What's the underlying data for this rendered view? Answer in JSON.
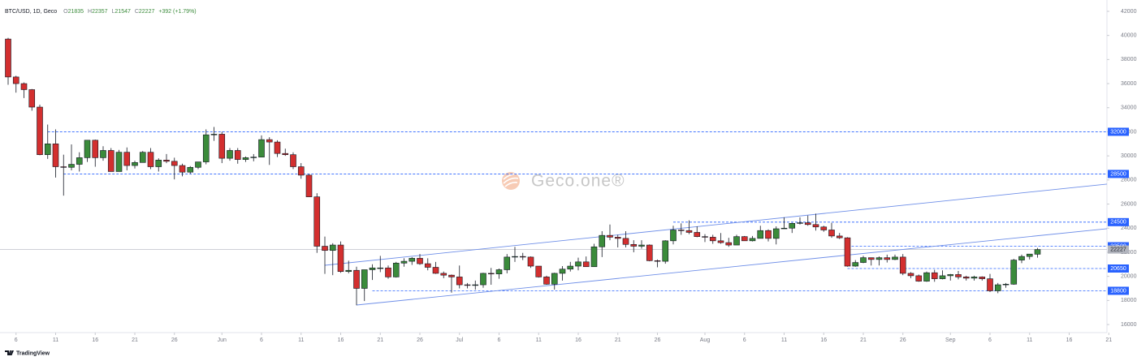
{
  "chart_data": {
    "type": "candlestick",
    "header": {
      "symbol": "BTC/USD, 1D, Geco",
      "labels": [
        "O",
        "H",
        "L",
        "C"
      ],
      "change": "+392 (+1.79%)"
    },
    "watermark": "Geco.one®",
    "brand": "TradingView",
    "categories": [
      "May 5",
      "May 6",
      "May 7",
      "May 8",
      "May 9",
      "May 10",
      "May 11",
      "May 12",
      "May 13",
      "May 14",
      "May 15",
      "May 16",
      "May 17",
      "May 18",
      "May 19",
      "May 20",
      "May 21",
      "May 22",
      "May 23",
      "May 24",
      "May 25",
      "May 26",
      "May 27",
      "May 28",
      "May 29",
      "May 30",
      "May 31",
      "Jun 1",
      "Jun 2",
      "Jun 3",
      "Jun 4",
      "Jun 5",
      "Jun 6",
      "Jun 7",
      "Jun 8",
      "Jun 9",
      "Jun 10",
      "Jun 11",
      "Jun 12",
      "Jun 13",
      "Jun 14",
      "Jun 15",
      "Jun 16",
      "Jun 17",
      "Jun 18",
      "Jun 19",
      "Jun 20",
      "Jun 21",
      "Jun 22",
      "Jun 23",
      "Jun 24",
      "Jun 25",
      "Jun 26",
      "Jun 27",
      "Jun 28",
      "Jun 29",
      "Jun 30",
      "Jul 1",
      "Jul 2",
      "Jul 3",
      "Jul 4",
      "Jul 5",
      "Jul 6",
      "Jul 7",
      "Jul 8",
      "Jul 9",
      "Jul 10",
      "Jul 11",
      "Jul 12",
      "Jul 13",
      "Jul 14",
      "Jul 15",
      "Jul 16",
      "Jul 17",
      "Jul 18",
      "Jul 19",
      "Jul 20",
      "Jul 21",
      "Jul 22",
      "Jul 23",
      "Jul 24",
      "Jul 25",
      "Jul 26",
      "Jul 27",
      "Jul 28",
      "Jul 29",
      "Jul 30",
      "Jul 31",
      "Aug 1",
      "Aug 2",
      "Aug 3",
      "Aug 4",
      "Aug 5",
      "Aug 6",
      "Aug 7",
      "Aug 8",
      "Aug 9",
      "Aug 10",
      "Aug 11",
      "Aug 12",
      "Aug 13",
      "Aug 14",
      "Aug 15",
      "Aug 16",
      "Aug 17",
      "Aug 18",
      "Aug 19",
      "Aug 20",
      "Aug 21",
      "Aug 22",
      "Aug 23",
      "Aug 24",
      "Aug 25",
      "Aug 26",
      "Aug 27",
      "Aug 28",
      "Aug 29",
      "Aug 30",
      "Aug 31",
      "Sep 1",
      "Sep 2",
      "Sep 3",
      "Sep 4",
      "Sep 5",
      "Sep 6",
      "Sep 7",
      "Sep 8",
      "Sep 9",
      "Sep 10",
      "Sep 11",
      "Sep 12",
      "Sep 13",
      "Sep 14",
      "Sep 15",
      "Sep 16",
      "Sep 17",
      "Sep 18",
      "Sep 19",
      "Sep 20",
      "Sep 21"
    ],
    "open": [
      39700,
      36550,
      36000,
      35500,
      34050,
      30100,
      31000,
      29100,
      29050,
      29300,
      29850,
      31300,
      29850,
      30450,
      28700,
      30300,
      29200,
      29450,
      30300,
      29100,
      29650,
      29550,
      29200,
      28650,
      29050,
      29500,
      31750,
      31800,
      29800,
      30450,
      29700,
      29850,
      29900,
      31350,
      31150,
      30200,
      30100,
      29100,
      28400,
      26600,
      22500,
      22150,
      22600,
      20400,
      20500,
      19000,
      20550,
      20700,
      20700,
      19950,
      21100,
      21250,
      21500,
      21050,
      20750,
      20250,
      20100,
      19950,
      19300,
      19250,
      19300,
      20250,
      20200,
      20550,
      21600,
      21650,
      21600,
      20850,
      19950,
      19350,
      20250,
      20600,
      20850,
      21200,
      20800,
      22450,
      23400,
      23250,
      23150,
      22650,
      22500,
      22600,
      21300,
      21250,
      22950,
      23850,
      23800,
      23650,
      23300,
      23250,
      22950,
      22800,
      22600,
      23300,
      22950,
      23150,
      23800,
      23150,
      23950,
      24000,
      24400,
      24450,
      24300,
      24100,
      23850,
      23350,
      23200,
      20850,
      21150,
      21550,
      21400,
      21550,
      21400,
      21600,
      20250,
      20050,
      19600,
      20300,
      19800,
      20050,
      20150,
      19950,
      19850,
      19950,
      19800,
      18800,
      19300,
      19350,
      21350,
      21650,
      21835,
      null,
      null,
      null,
      null,
      null,
      null,
      null,
      null,
      null
    ],
    "high": [
      39800,
      36650,
      36100,
      35550,
      34250,
      32600,
      32200,
      30100,
      30950,
      30300,
      31300,
      31350,
      30800,
      30650,
      30500,
      30700,
      29600,
      30400,
      30650,
      29800,
      30150,
      29850,
      29350,
      29150,
      29500,
      32200,
      32400,
      32000,
      30650,
      30650,
      29950,
      30150,
      31700,
      31550,
      31300,
      30600,
      30300,
      29400,
      28500,
      26900,
      23300,
      22750,
      22900,
      21300,
      20800,
      20550,
      21000,
      21700,
      20900,
      21200,
      21500,
      21600,
      21850,
      21500,
      21200,
      20400,
      20150,
      20900,
      19450,
      19650,
      20300,
      20700,
      20650,
      21850,
      22450,
      21950,
      21650,
      20850,
      20050,
      20300,
      20850,
      21200,
      21550,
      21650,
      22700,
      23750,
      24300,
      23450,
      23750,
      23000,
      23000,
      22650,
      21400,
      23000,
      24200,
      24400,
      24650,
      24150,
      23500,
      23450,
      23600,
      23200,
      23450,
      23350,
      23350,
      24200,
      23900,
      24150,
      24900,
      24450,
      24900,
      25050,
      25200,
      24200,
      24450,
      23600,
      23250,
      21350,
      21700,
      21550,
      21650,
      21800,
      21800,
      21850,
      20350,
      20150,
      20400,
      20550,
      20500,
      20200,
      20450,
      20050,
      20050,
      20000,
      20200,
      19450,
      19450,
      21450,
      21800,
      21850,
      22357,
      null,
      null,
      null,
      null,
      null,
      null,
      null,
      null,
      null
    ],
    "low": [
      35900,
      35250,
      34800,
      33750,
      30050,
      29750,
      28200,
      26700,
      28800,
      28700,
      29500,
      29100,
      29600,
      28700,
      28700,
      28800,
      28950,
      29450,
      28900,
      28700,
      29400,
      28050,
      28300,
      28500,
      28900,
      29300,
      31250,
      29400,
      29600,
      29350,
      29500,
      29550,
      29900,
      29250,
      29900,
      30000,
      28900,
      28100,
      26600,
      21950,
      20200,
      20100,
      20300,
      20250,
      17600,
      17950,
      19700,
      20350,
      19800,
      19900,
      20800,
      20950,
      20950,
      20500,
      20200,
      19850,
      18650,
      19000,
      19000,
      18900,
      19050,
      19300,
      19800,
      20250,
      21200,
      21350,
      20700,
      19900,
      19300,
      18900,
      19650,
      20400,
      20500,
      20800,
      20800,
      21600,
      23000,
      22400,
      22400,
      22000,
      22300,
      21250,
      20750,
      21050,
      22650,
      23450,
      23500,
      23250,
      22850,
      22700,
      22700,
      22450,
      22600,
      22950,
      22900,
      23150,
      22900,
      22650,
      23950,
      23600,
      24300,
      24200,
      23800,
      23700,
      23200,
      23100,
      20800,
      20800,
      21100,
      20900,
      20900,
      21150,
      21350,
      20100,
      19850,
      19550,
      19550,
      19550,
      19750,
      19650,
      19750,
      19650,
      19650,
      19650,
      18700,
      18600,
      19050,
      19300,
      21100,
      21400,
      21547,
      null,
      null,
      null,
      null,
      null,
      null,
      null,
      null,
      null
    ],
    "close": [
      36550,
      36000,
      35500,
      34050,
      30100,
      31000,
      29100,
      29050,
      29300,
      29850,
      31300,
      29850,
      30450,
      28700,
      30300,
      29200,
      29450,
      30300,
      29100,
      29650,
      29550,
      29200,
      28650,
      29050,
      29500,
      31750,
      31800,
      29800,
      30450,
      29700,
      29850,
      29900,
      31350,
      31150,
      30200,
      30100,
      29100,
      28400,
      26600,
      22500,
      22150,
      22600,
      20400,
      20500,
      19000,
      20550,
      20700,
      20700,
      19950,
      21100,
      21250,
      21500,
      21050,
      20750,
      20250,
      20100,
      19950,
      19300,
      19250,
      19300,
      20250,
      20200,
      20550,
      21600,
      21650,
      21600,
      20850,
      19950,
      19350,
      20250,
      20600,
      20850,
      21200,
      20800,
      22450,
      23400,
      23250,
      23150,
      22650,
      22500,
      22600,
      21300,
      21250,
      22950,
      23850,
      23800,
      23650,
      23300,
      23250,
      22950,
      22800,
      22600,
      23300,
      22950,
      23150,
      23800,
      23150,
      23950,
      24000,
      24400,
      24450,
      24300,
      24100,
      23850,
      23350,
      23200,
      20850,
      21150,
      21550,
      21400,
      21550,
      21400,
      21600,
      20250,
      20050,
      19600,
      20300,
      19800,
      20050,
      20150,
      19950,
      19850,
      19950,
      19800,
      18800,
      19300,
      19350,
      21350,
      21650,
      21850,
      22227,
      null,
      null,
      null,
      null,
      null,
      null,
      null,
      null,
      null
    ],
    "up_color": "#3b8b3b",
    "down_color": "#d32f2f",
    "ylim": [
      15330,
      42940
    ],
    "yticks": [
      16000,
      18000,
      20000,
      22000,
      24000,
      26000,
      28000,
      30000,
      32000,
      34000,
      36000,
      38000,
      40000,
      42000
    ],
    "xticks": [
      {
        "value": "May 6",
        "label": "6"
      },
      {
        "value": "May 11",
        "label": "11"
      },
      {
        "value": "May 16",
        "label": "16"
      },
      {
        "value": "May 21",
        "label": "21"
      },
      {
        "value": "May 26",
        "label": "26"
      },
      {
        "value": "Jun 1",
        "label": "Jun"
      },
      {
        "value": "Jun 6",
        "label": "6"
      },
      {
        "value": "Jun 11",
        "label": "11"
      },
      {
        "value": "Jun 16",
        "label": "16"
      },
      {
        "value": "Jun 21",
        "label": "21"
      },
      {
        "value": "Jun 26",
        "label": "26"
      },
      {
        "value": "Jul 1",
        "label": "Jul"
      },
      {
        "value": "Jul 6",
        "label": "6"
      },
      {
        "value": "Jul 11",
        "label": "11"
      },
      {
        "value": "Jul 16",
        "label": "16"
      },
      {
        "value": "Jul 21",
        "label": "21"
      },
      {
        "value": "Jul 26",
        "label": "26"
      },
      {
        "value": "Aug 1",
        "label": "Aug"
      },
      {
        "value": "Aug 6",
        "label": "6"
      },
      {
        "value": "Aug 11",
        "label": "11"
      },
      {
        "value": "Aug 16",
        "label": "16"
      },
      {
        "value": "Aug 21",
        "label": "21"
      },
      {
        "value": "Aug 26",
        "label": "26"
      },
      {
        "value": "Sep 1",
        "label": "Sep"
      },
      {
        "value": "Sep 6",
        "label": "6"
      },
      {
        "value": "Sep 11",
        "label": "11"
      },
      {
        "value": "Sep 16",
        "label": "16"
      },
      {
        "value": "Sep 21",
        "label": "21"
      }
    ],
    "levels": [
      32000,
      28500,
      24500,
      22500,
      20650,
      18800
    ],
    "level_starts": [
      "May 10",
      "May 12",
      "Jul 28",
      "Aug 19",
      "Aug 19",
      "Jun 20"
    ],
    "level_color": "#2962ff",
    "trendlines": [
      {
        "x": [
          "Jun 14",
          "Aug 15"
        ],
        "y": [
          20920,
          25150
        ]
      },
      {
        "x": [
          "Jun 18",
          "Sep 12"
        ],
        "y": [
          17620,
          23370
        ]
      }
    ],
    "trendline_color": "#6f8fe8"
  }
}
